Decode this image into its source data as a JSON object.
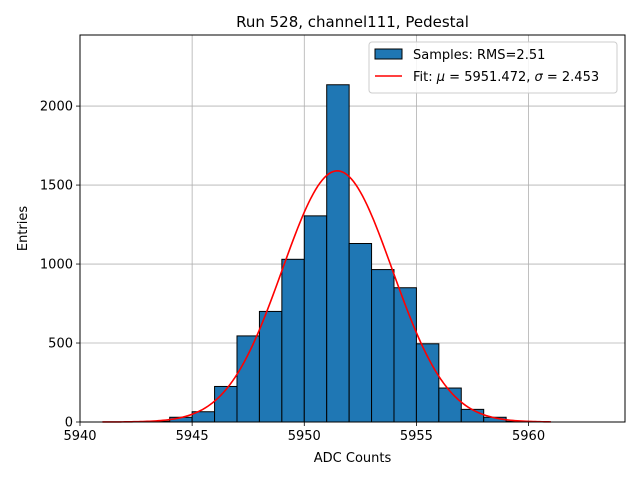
{
  "chart_data": {
    "type": "bar",
    "title": "Run 528, channel111, Pedestal",
    "xlabel": "ADC Counts",
    "ylabel": "Entries",
    "xlim": [
      5940,
      5964.3
    ],
    "ylim": [
      0,
      2450
    ],
    "xticks": [
      5940,
      5945,
      5950,
      5955,
      5960
    ],
    "yticks": [
      0,
      500,
      1000,
      1500,
      2000
    ],
    "grid": true,
    "legend_placement": "top-right",
    "histogram": {
      "name": "Samples: RMS=2.51",
      "color": "#1f77b4",
      "edgecolor": "#000000",
      "bin_width": 1,
      "bins": [
        {
          "x0": 5943,
          "value": 5
        },
        {
          "x0": 5944,
          "value": 30
        },
        {
          "x0": 5945,
          "value": 65
        },
        {
          "x0": 5946,
          "value": 225
        },
        {
          "x0": 5947,
          "value": 545
        },
        {
          "x0": 5948,
          "value": 700
        },
        {
          "x0": 5949,
          "value": 1030
        },
        {
          "x0": 5950,
          "value": 1305
        },
        {
          "x0": 5951,
          "value": 2135
        },
        {
          "x0": 5952,
          "value": 1130
        },
        {
          "x0": 5953,
          "value": 965
        },
        {
          "x0": 5954,
          "value": 850
        },
        {
          "x0": 5955,
          "value": 495
        },
        {
          "x0": 5956,
          "value": 215
        },
        {
          "x0": 5957,
          "value": 80
        },
        {
          "x0": 5958,
          "value": 30
        },
        {
          "x0": 5959,
          "value": 5
        }
      ]
    },
    "fit": {
      "name": "Fit: μ = 5951.472, σ = 2.453",
      "label_prefix": "Fit: ",
      "mu_symbol": "μ",
      "mu_text": " = 5951.472, ",
      "sigma_symbol": "σ",
      "sigma_text": " = 2.453",
      "color": "#ff0000",
      "mu": 5951.472,
      "sigma": 2.453,
      "amplitude": 1590,
      "x_range": [
        5941,
        5961
      ]
    }
  }
}
